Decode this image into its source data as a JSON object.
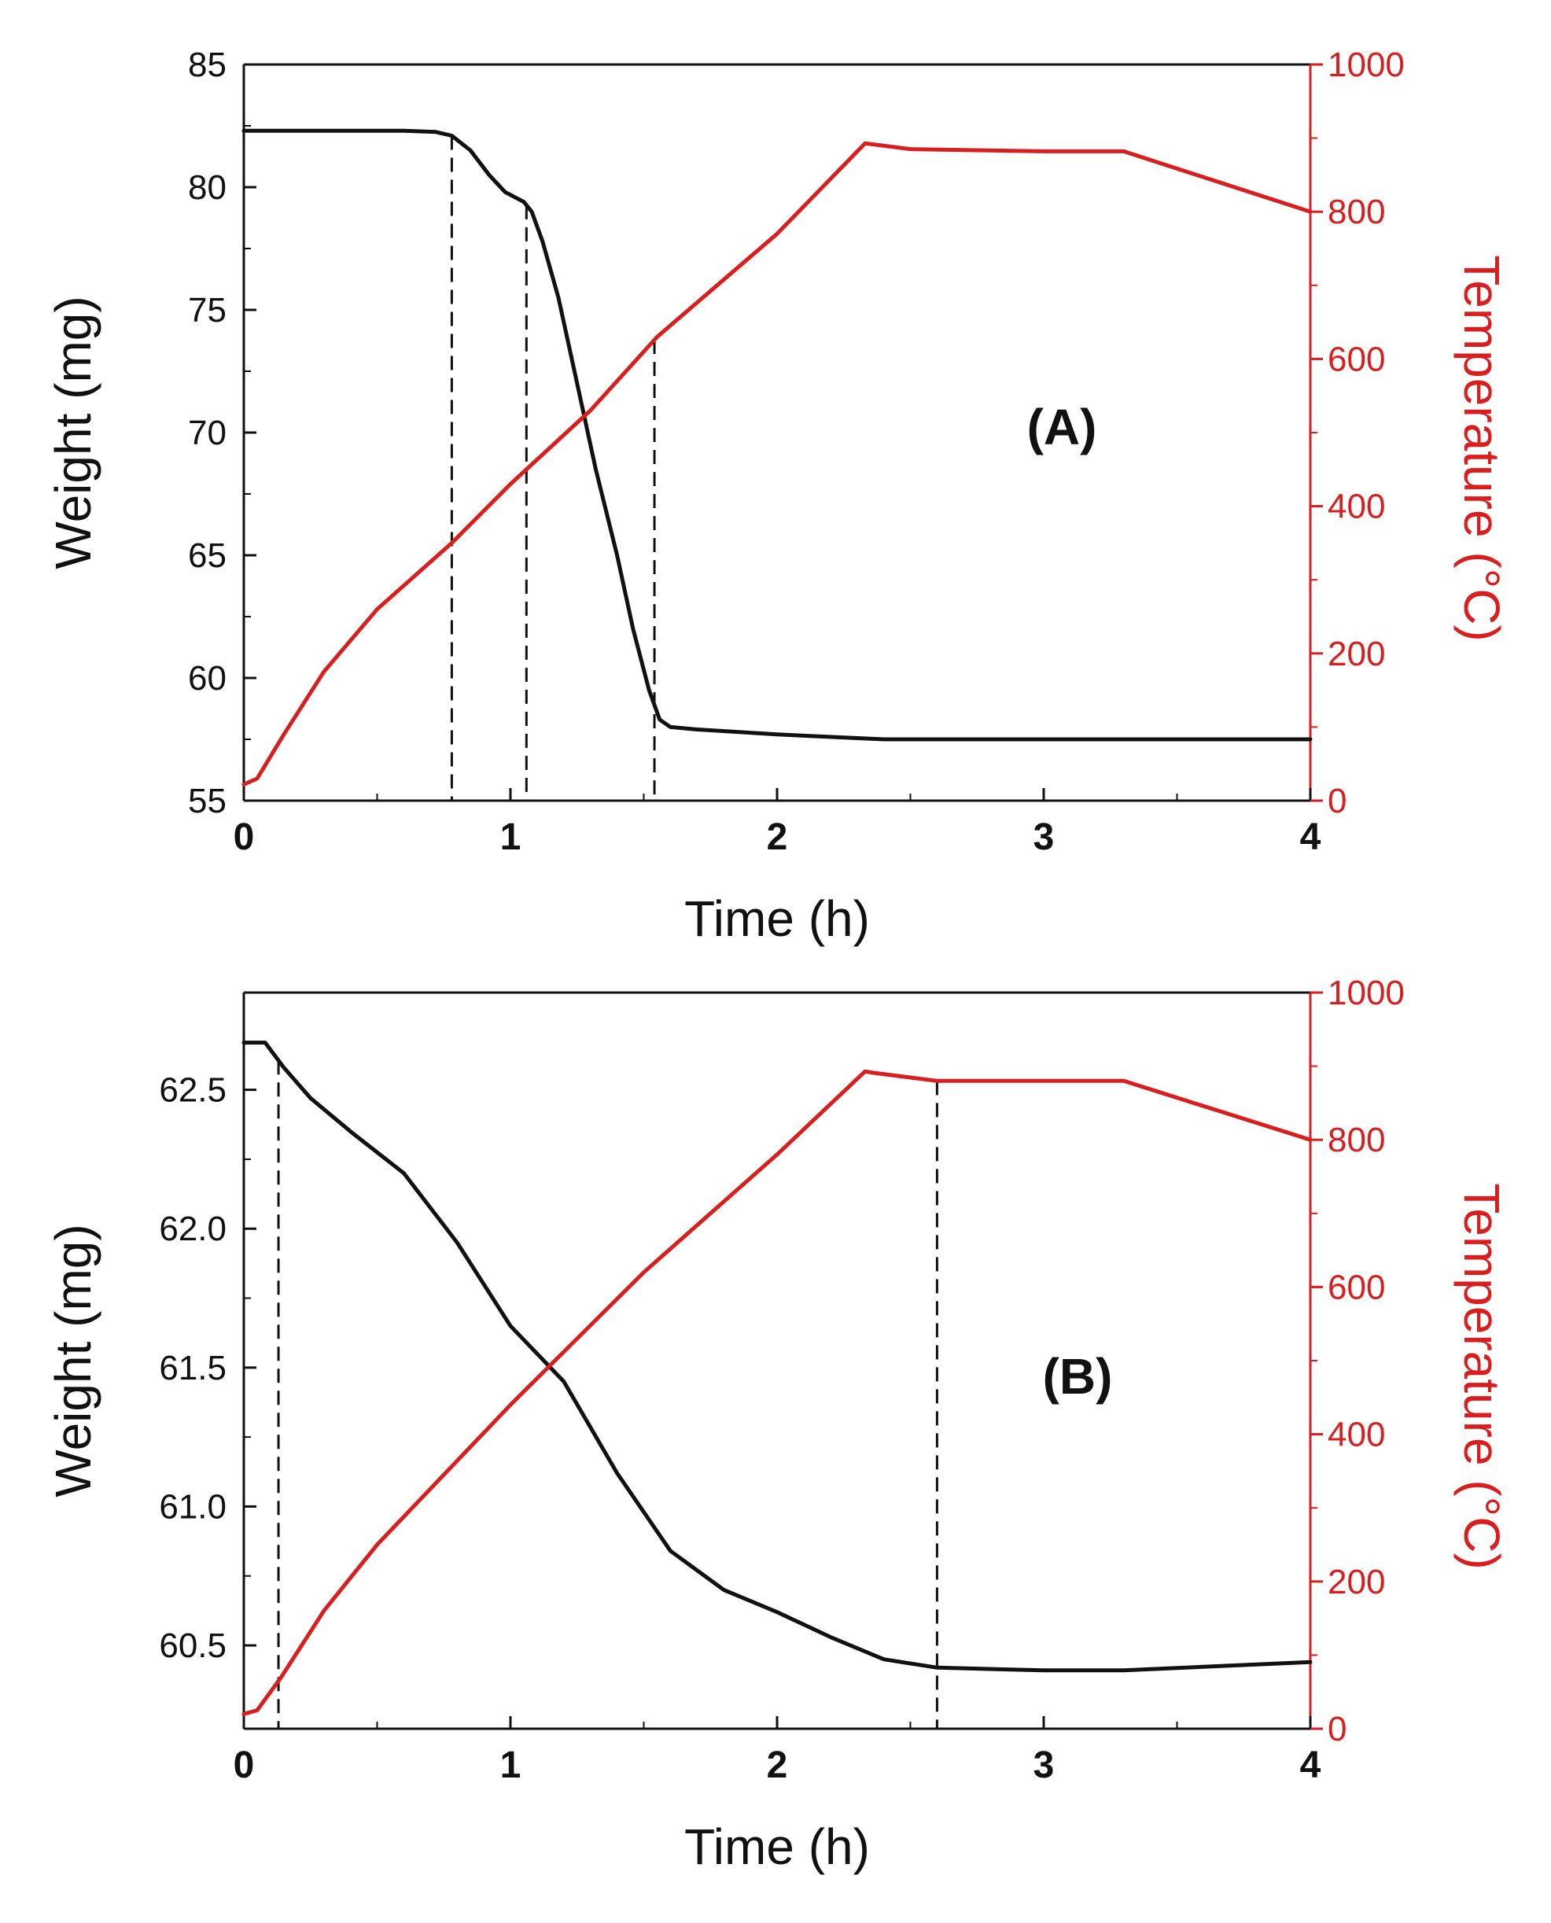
{
  "colors": {
    "weight": "#111111",
    "temperature": "#d81e1e"
  },
  "chart_data": [
    {
      "type": "line",
      "panel_label": "(A)",
      "xlabel": "Time (h)",
      "ylabel_left": "Weight (mg)",
      "ylabel_right": "Temperature (°C)",
      "xlim": [
        0,
        4
      ],
      "ylim_left": [
        55,
        85
      ],
      "ylim_right": [
        0,
        1000
      ],
      "x_ticks": [
        0,
        1,
        2,
        3,
        4
      ],
      "x_tick_labels": [
        "0",
        "1",
        "2",
        "3",
        "4"
      ],
      "y_left_ticks": [
        55,
        60,
        65,
        70,
        75,
        80,
        85
      ],
      "y_left_tick_labels": [
        "55",
        "60",
        "65",
        "70",
        "75",
        "80",
        "85"
      ],
      "y_right_ticks": [
        0,
        200,
        400,
        600,
        800,
        1000
      ],
      "y_right_tick_labels": [
        "0",
        "200",
        "400",
        "600",
        "800",
        "1000"
      ],
      "series": [
        {
          "name": "Weight",
          "axis": "left",
          "color": "#111111",
          "x": [
            0,
            0.3,
            0.6,
            0.72,
            0.78,
            0.85,
            0.92,
            0.98,
            1.05,
            1.08,
            1.12,
            1.18,
            1.25,
            1.32,
            1.4,
            1.46,
            1.52,
            1.56,
            1.6,
            1.7,
            2.0,
            2.4,
            3.0,
            4.0
          ],
          "values": [
            82.3,
            82.3,
            82.3,
            82.25,
            82.1,
            81.5,
            80.5,
            79.8,
            79.4,
            79.0,
            77.8,
            75.5,
            72.0,
            68.5,
            65.0,
            62.0,
            59.5,
            58.3,
            58.0,
            57.9,
            57.7,
            57.5,
            57.5,
            57.5
          ]
        },
        {
          "name": "Temperature",
          "axis": "right",
          "color": "#d81e1e",
          "x": [
            0,
            0.05,
            0.15,
            0.3,
            0.5,
            0.78,
            1.0,
            1.3,
            1.55,
            2.0,
            2.33,
            2.35,
            2.5,
            3.0,
            3.3,
            4.0
          ],
          "values": [
            22,
            30,
            90,
            175,
            260,
            350,
            430,
            530,
            630,
            770,
            893,
            892,
            885,
            882,
            882,
            800
          ]
        }
      ],
      "vlines": [
        0.78,
        1.06,
        1.54
      ]
    },
    {
      "type": "line",
      "panel_label": "(B)",
      "xlabel": "Time (h)",
      "ylabel_left": "Weight (mg)",
      "ylabel_right": "Temperature (°C)",
      "xlim": [
        0,
        4
      ],
      "ylim_left": [
        60.2,
        62.85
      ],
      "ylim_right": [
        0,
        1000
      ],
      "x_ticks": [
        0,
        1,
        2,
        3,
        4
      ],
      "x_tick_labels": [
        "0",
        "1",
        "2",
        "3",
        "4"
      ],
      "y_left_ticks": [
        60.5,
        61.0,
        61.5,
        62.0,
        62.5
      ],
      "y_left_tick_labels": [
        "60.5",
        "61.0",
        "61.5",
        "62.0",
        "62.5"
      ],
      "y_right_ticks": [
        0,
        200,
        400,
        600,
        800,
        1000
      ],
      "y_right_tick_labels": [
        "0",
        "200",
        "400",
        "600",
        "800",
        "1000"
      ],
      "series": [
        {
          "name": "Weight",
          "axis": "left",
          "color": "#111111",
          "x": [
            0,
            0.08,
            0.15,
            0.25,
            0.4,
            0.6,
            0.8,
            1.0,
            1.2,
            1.4,
            1.6,
            1.8,
            2.0,
            2.2,
            2.4,
            2.6,
            3.0,
            3.3,
            4.0
          ],
          "values": [
            62.67,
            62.67,
            62.58,
            62.47,
            62.35,
            62.2,
            61.95,
            61.65,
            61.45,
            61.12,
            60.84,
            60.7,
            60.62,
            60.53,
            60.45,
            60.42,
            60.41,
            60.41,
            60.44
          ]
        },
        {
          "name": "Temperature",
          "axis": "right",
          "color": "#d81e1e",
          "x": [
            0,
            0.05,
            0.14,
            0.3,
            0.5,
            1.0,
            1.5,
            2.0,
            2.33,
            2.36,
            2.6,
            3.0,
            3.3,
            4.0
          ],
          "values": [
            20,
            25,
            70,
            160,
            250,
            440,
            620,
            780,
            893,
            891,
            880,
            880,
            880,
            800
          ]
        }
      ],
      "vlines": [
        0.13,
        2.6
      ]
    }
  ]
}
